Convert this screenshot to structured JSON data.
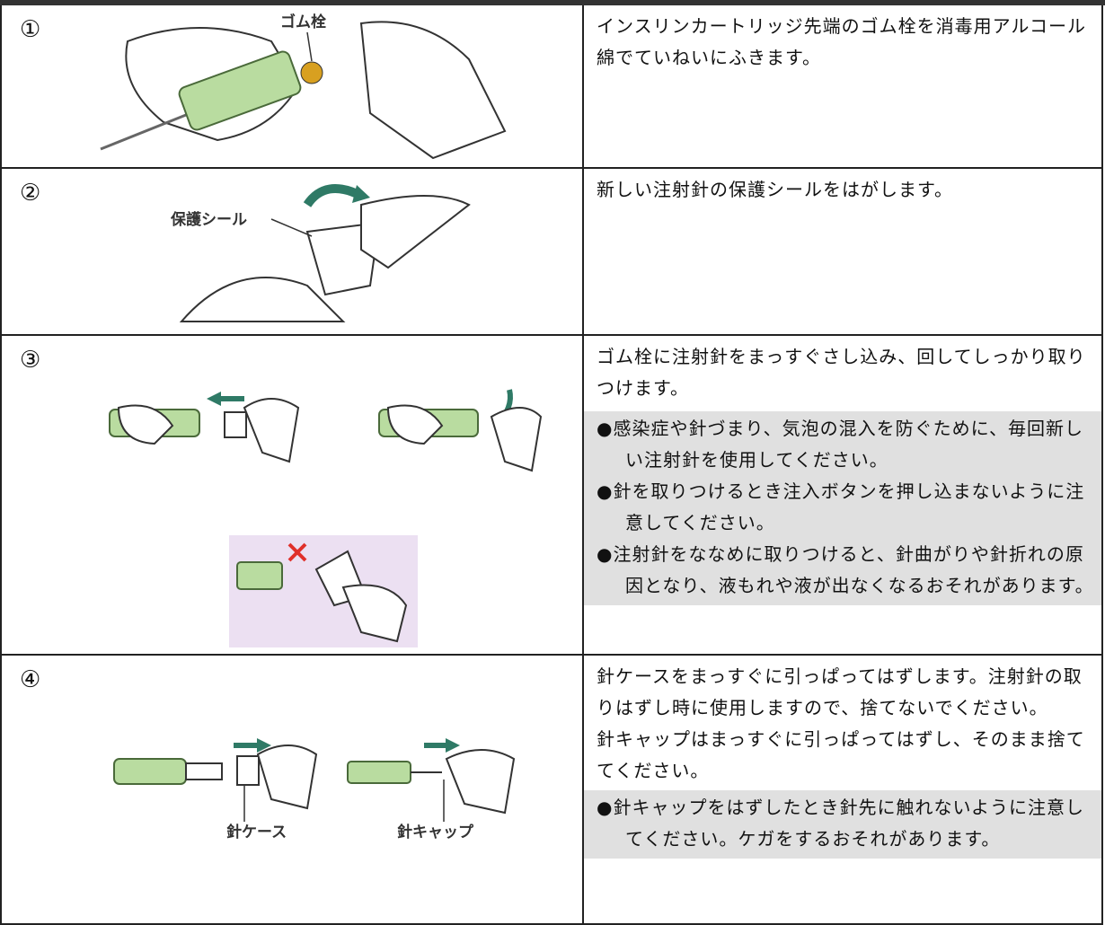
{
  "steps": [
    {
      "number": "①",
      "labels": [
        "ゴム栓"
      ],
      "text": [
        "インスリンカートリッジ先端のゴム栓を消毒用アルコール綿でていねいにふきます。"
      ],
      "notes": []
    },
    {
      "number": "②",
      "labels": [
        "保護シール"
      ],
      "text": [
        "新しい注射針の保護シールをはがします。"
      ],
      "notes": []
    },
    {
      "number": "③",
      "labels": [],
      "text": [
        "ゴム栓に注射針をまっすぐさし込み、回してしっかり取りつけます。"
      ],
      "notes": [
        "●感染症や針づまり、気泡の混入を防ぐために、毎回新しい注射針を使用してください。",
        "●針を取りつけるとき注入ボタンを押し込まないように注意してください。",
        "●注射針をななめに取りつけると、針曲がりや針折れの原因となり、液もれや液が出なくなるおそれがあります。"
      ]
    },
    {
      "number": "④",
      "labels": [
        "針ケース",
        "針キャップ"
      ],
      "text": [
        "針ケースをまっすぐに引っぱってはずします。注射針の取りはずし時に使用しますので、捨てないでください。",
        "針キャップはまっすぐに引っぱってはずし、そのまま捨ててください。"
      ],
      "notes": [
        "●針キャップをはずしたとき針先に触れないように注意してください。ケガをするおそれがあります。"
      ]
    }
  ]
}
